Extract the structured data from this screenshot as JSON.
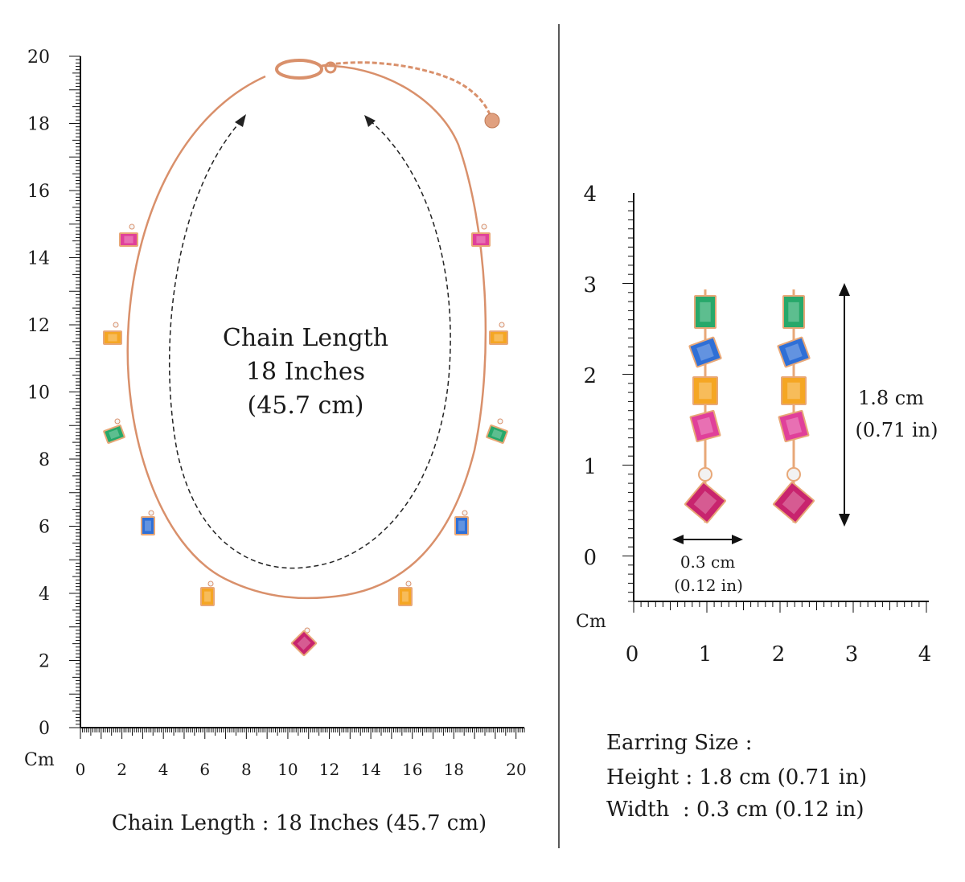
{
  "necklace_panel": {
    "unit_label": "Cm",
    "y_ticks": [
      "0",
      "2",
      "4",
      "6",
      "8",
      "10",
      "12",
      "14",
      "16",
      "18",
      "20"
    ],
    "x_ticks": [
      "0",
      "2",
      "4",
      "6",
      "8",
      "10",
      "12",
      "14",
      "16",
      "18",
      "20"
    ],
    "center_label": [
      "Chain Length",
      "18 Inches",
      "(45.7 cm)"
    ],
    "caption": "Chain Length : 18 Inches (45.7 cm)",
    "colors": {
      "chain": "#d9906b",
      "arrow": "#222222"
    }
  },
  "earring_panel": {
    "unit_label": "Cm",
    "y_ticks": [
      "0",
      "1",
      "2",
      "3",
      "4"
    ],
    "x_ticks": [
      "0",
      "1",
      "2",
      "3",
      "4"
    ],
    "height_label": [
      "1.8 cm",
      "(0.71 in)"
    ],
    "width_label": [
      "0.3 cm",
      "(0.12 in)"
    ],
    "size_block": {
      "title": "Earring Size :",
      "height_line": "Height : 1.8 cm (0.71 in)",
      "width_line": "Width  : 0.3 cm (0.12 in)"
    }
  },
  "gem_colors": {
    "pink": "#e0409a",
    "orange": "#f5a623",
    "green": "#27a86a",
    "blue": "#2f6fd6",
    "ruby": "#c8246e",
    "gold": "#e8a878"
  },
  "necklace_gems": [
    "pink",
    "orange",
    "green",
    "blue",
    "orange",
    "ruby",
    "orange",
    "blue",
    "green",
    "orange",
    "pink"
  ],
  "earring_stack": [
    "green",
    "blue",
    "orange",
    "pink",
    "ruby"
  ]
}
